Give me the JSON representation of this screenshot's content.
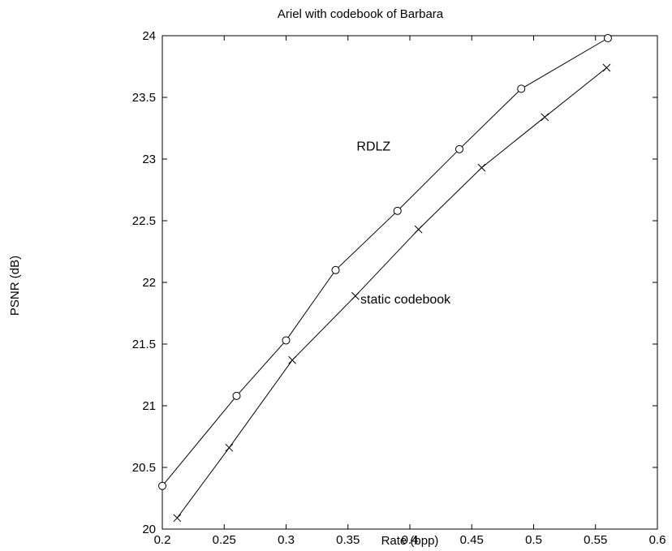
{
  "chart_data": {
    "type": "line",
    "title": "Ariel with codebook of Barbara",
    "xlabel": "Rate (bpp)",
    "ylabel": "PSNR (dB)",
    "xlim": [
      0.2,
      0.6
    ],
    "ylim": [
      20,
      24
    ],
    "xticks": [
      "0.2",
      "0.25",
      "0.3",
      "0.35",
      "0.4",
      "0.45",
      "0.5",
      "0.55",
      "0.6"
    ],
    "yticks": [
      "20",
      "20.5",
      "21",
      "21.5",
      "22",
      "22.5",
      "23",
      "23.5",
      "24"
    ],
    "grid": false,
    "series": [
      {
        "name": "RDLZ",
        "marker": "circle",
        "color": "#000000",
        "x": [
          0.2,
          0.26,
          0.3,
          0.34,
          0.39,
          0.44,
          0.49,
          0.56
        ],
        "y": [
          20.35,
          21.08,
          21.53,
          22.1,
          22.58,
          23.08,
          23.57,
          23.98
        ]
      },
      {
        "name": "static codebook",
        "marker": "x",
        "color": "#000000",
        "x": [
          0.212,
          0.254,
          0.305,
          0.356,
          0.407,
          0.458,
          0.509,
          0.559
        ],
        "y": [
          20.09,
          20.66,
          21.37,
          21.89,
          22.43,
          22.93,
          23.34,
          23.74
        ]
      }
    ],
    "annotations": [
      {
        "text": "RDLZ",
        "x": 0.357,
        "y": 23.07
      },
      {
        "text": "static codebook",
        "x": 0.36,
        "y": 21.83
      }
    ]
  }
}
